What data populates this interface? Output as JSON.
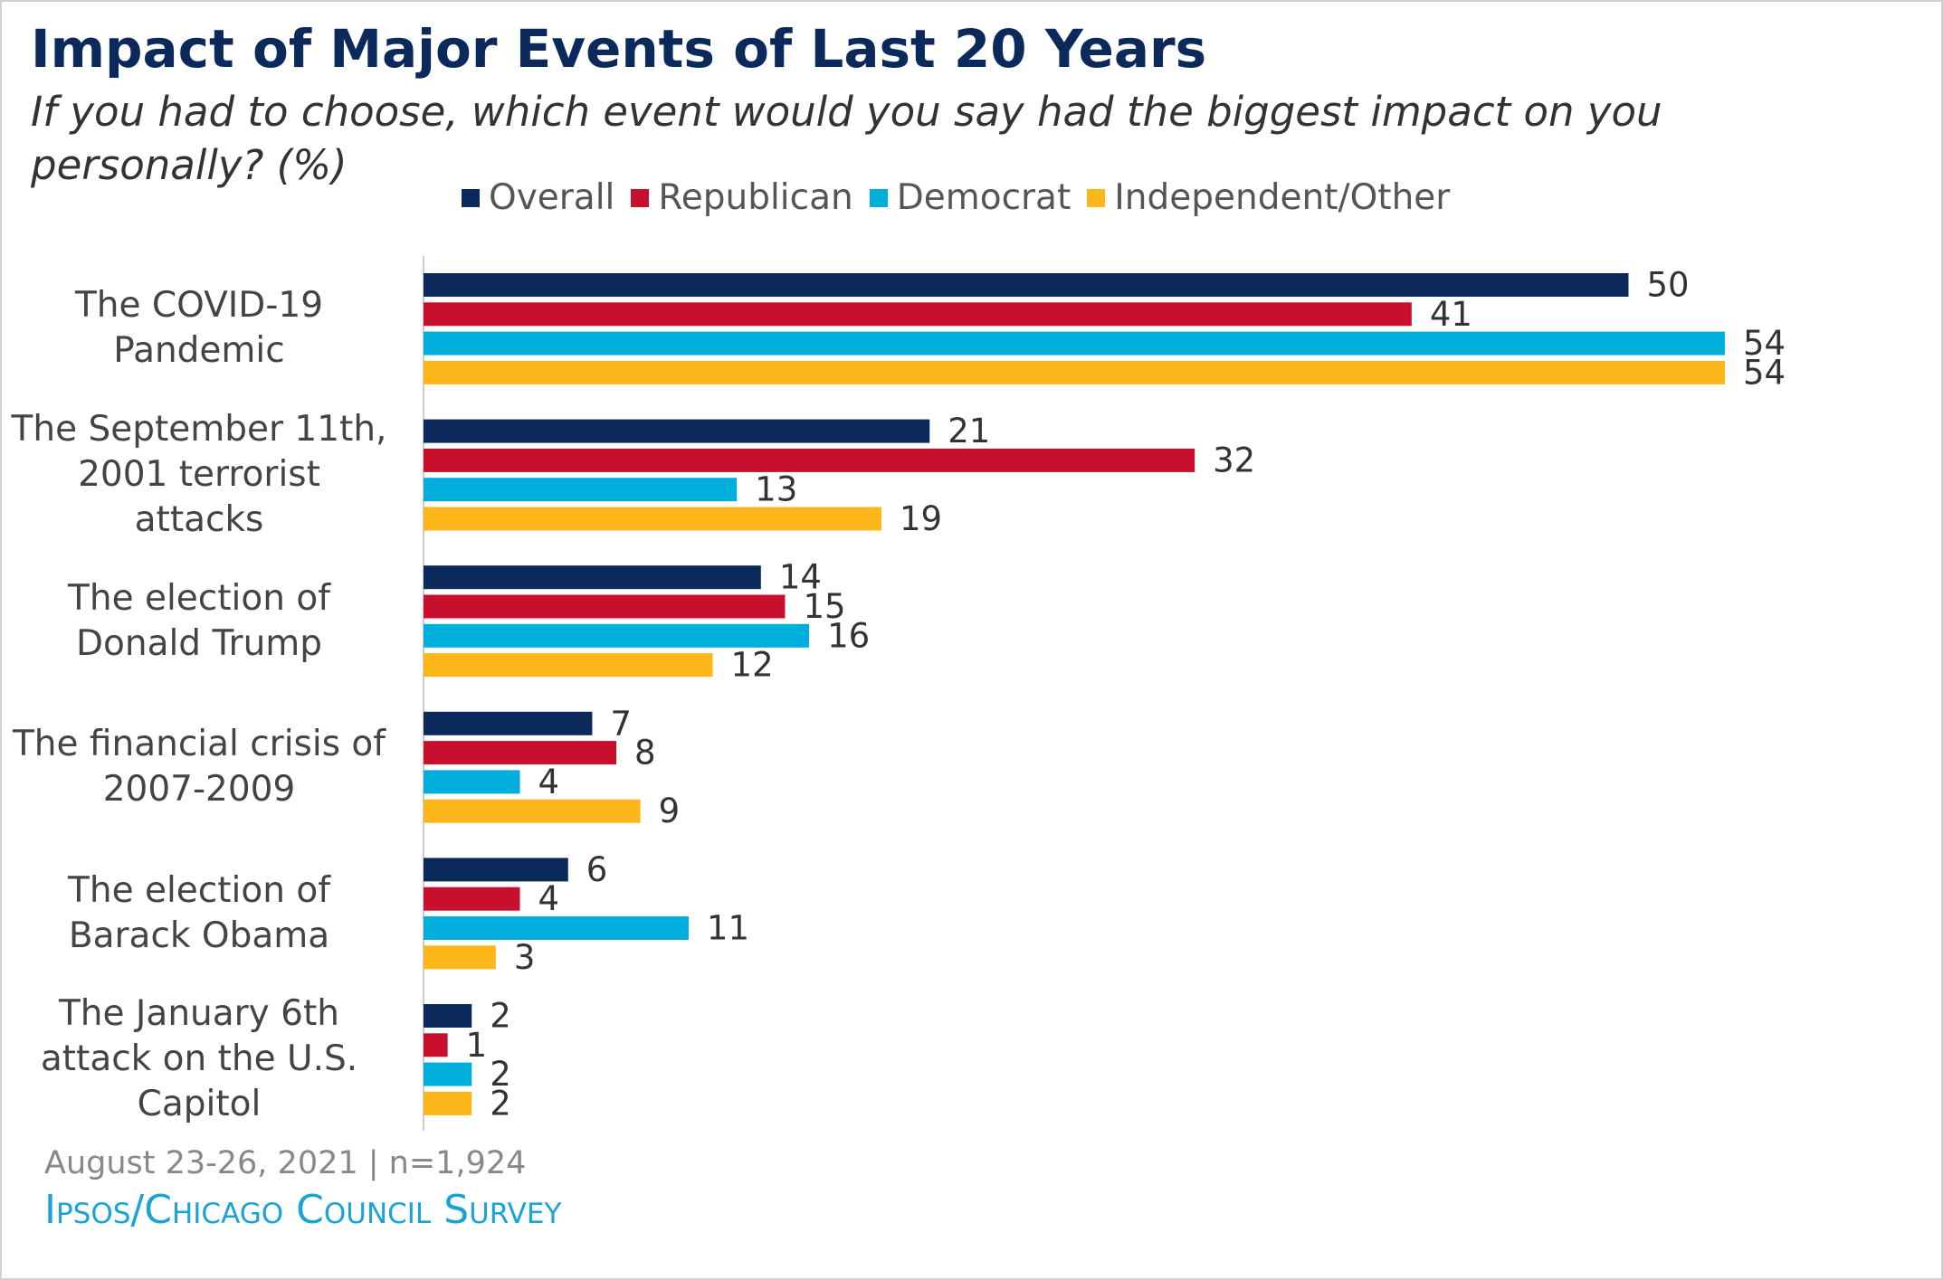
{
  "chart_data": {
    "type": "bar",
    "orientation": "horizontal",
    "title": "Impact of Major Events of Last 20 Years",
    "subtitle": "If you had to choose, which event would you say had the biggest impact on you personally? (%)",
    "categories": [
      "The COVID-19 Pandemic",
      "The September 11th, 2001 terrorist attacks",
      "The election of Donald Trump",
      "The financial crisis of 2007-2009",
      "The election of Barack Obama",
      "The January 6th attack on the U.S. Capitol"
    ],
    "series": [
      {
        "name": "Overall",
        "color": "#0b2a5b",
        "values": [
          50,
          21,
          14,
          7,
          6,
          2
        ]
      },
      {
        "name": "Republican",
        "color": "#c8102e",
        "values": [
          41,
          32,
          15,
          8,
          4,
          1
        ]
      },
      {
        "name": "Democrat",
        "color": "#00aedb",
        "values": [
          54,
          13,
          16,
          4,
          11,
          2
        ]
      },
      {
        "name": "Independent/Other",
        "color": "#fdb71a",
        "values": [
          54,
          19,
          12,
          9,
          3,
          2
        ]
      }
    ],
    "note": "August 23-26, 2021 | n=1,924",
    "source": "Ipsos/Chicago Council Survey"
  }
}
